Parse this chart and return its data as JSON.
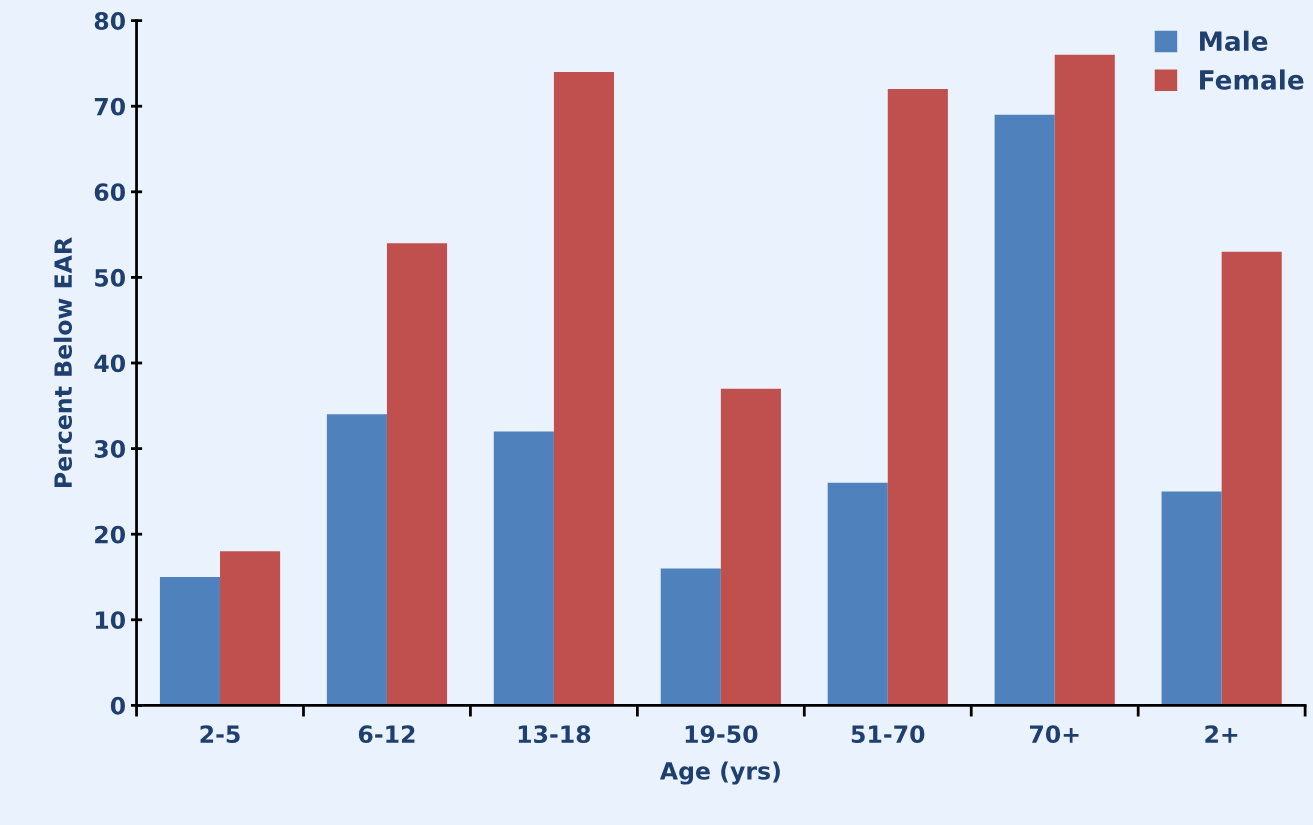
{
  "chart_data": {
    "type": "bar",
    "xlabel": "Age (yrs)",
    "ylabel": "Percent Below EAR",
    "categories": [
      "2-5",
      "6-12",
      "13-18",
      "19-50",
      "51-70",
      "70+",
      "2+"
    ],
    "series": [
      {
        "name": "Male",
        "color": "#4f81bd",
        "values": [
          15,
          34,
          32,
          16,
          26,
          69,
          25
        ]
      },
      {
        "name": "Female",
        "color": "#c0504d",
        "values": [
          18,
          54,
          74,
          37,
          72,
          76,
          53
        ]
      }
    ],
    "ylim": [
      0,
      80
    ],
    "yticks": [
      0,
      10,
      20,
      30,
      40,
      50,
      60,
      70,
      80
    ],
    "grid": false,
    "legend": "top right"
  }
}
